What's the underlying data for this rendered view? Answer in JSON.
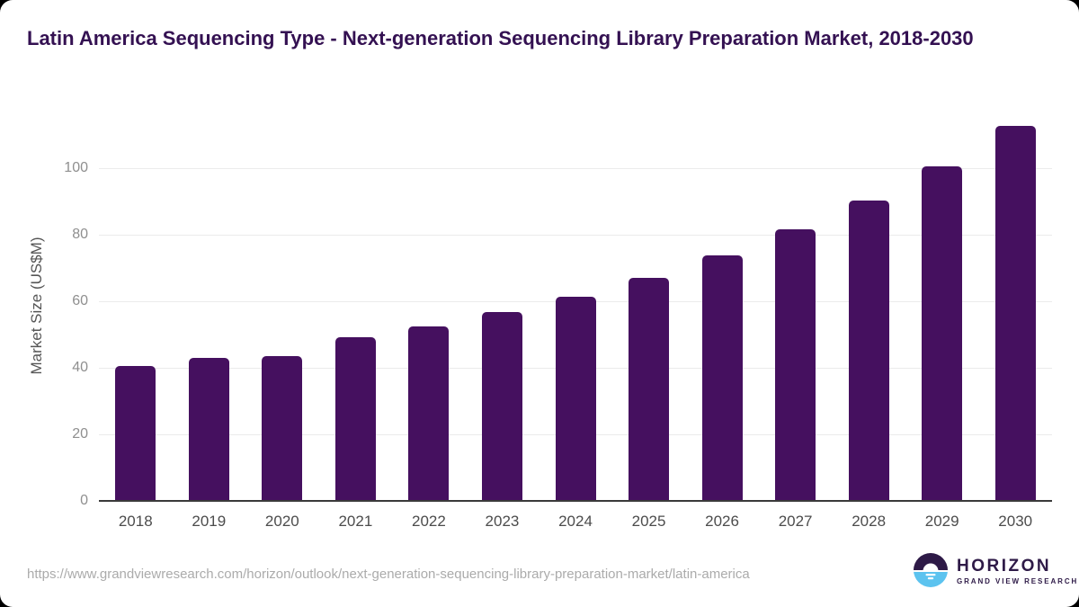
{
  "page": {
    "title": "Latin America Sequencing Type - Next-generation Sequencing Library Preparation Market, 2018-2030"
  },
  "chart_data": {
    "type": "bar",
    "title": "Latin America Sequencing Type - Next-generation Sequencing Library Preparation Market, 2018-2030",
    "categories": [
      "2018",
      "2019",
      "2020",
      "2021",
      "2022",
      "2023",
      "2024",
      "2025",
      "2026",
      "2027",
      "2028",
      "2029",
      "2030"
    ],
    "values": [
      40.5,
      42.9,
      43.4,
      49.2,
      52.4,
      56.7,
      61.4,
      67.0,
      73.9,
      81.5,
      90.4,
      100.6,
      112.7
    ],
    "xlabel": "",
    "ylabel": "Market Size (US$M)",
    "ylim": [
      0,
      115
    ],
    "yticks": [
      0,
      20,
      40,
      60,
      80,
      100
    ],
    "grid": true,
    "legend": "none",
    "bar_color": "#45105f"
  },
  "footer": {
    "source_url": "https://www.grandviewresearch.com/horizon/outlook/next-generation-sequencing-library-preparation-market/latin-america",
    "logo": {
      "brand": "HORIZON",
      "tagline": "GRAND VIEW RESEARCH"
    }
  },
  "colors": {
    "bar": "#45105f",
    "title_text": "#341152",
    "gridline": "#ebebeb",
    "axis_line": "#3a3a3a",
    "y_tick_text": "#8f8f8f",
    "x_tick_text": "#4c4c4c",
    "url_text": "#ababab",
    "logo_purple": "#2e1a47",
    "logo_blue": "#5cc3ef"
  }
}
